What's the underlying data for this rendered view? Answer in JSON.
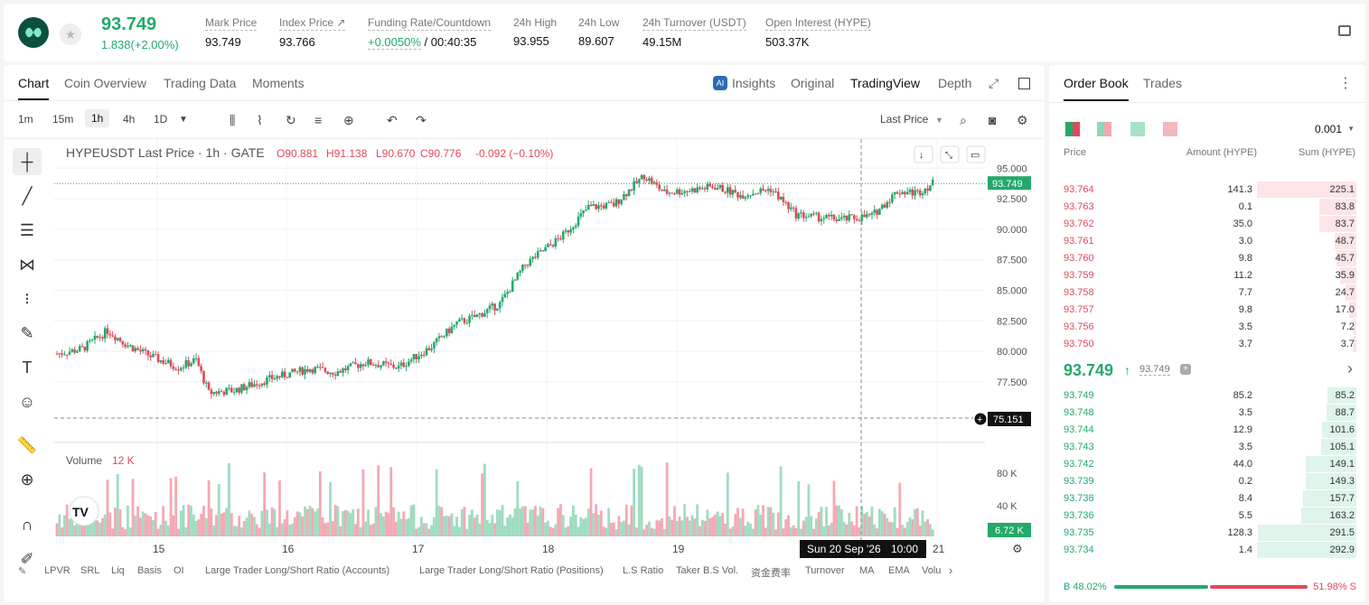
{
  "header": {
    "price": "93.749",
    "change": "1.838(+2.00%)",
    "stats": [
      {
        "label": "Mark Price",
        "value": "93.749"
      },
      {
        "label": "Index Price ↗",
        "value": "93.766"
      },
      {
        "label": "Funding Rate/Countdown",
        "value_green": "+0.0050%",
        "value": "/ 00:40:35"
      },
      {
        "label": "24h High",
        "value": "93.955"
      },
      {
        "label": "24h Low",
        "value": "89.607"
      },
      {
        "label": "24h Turnover (USDT)",
        "value": "49.15M"
      },
      {
        "label": "Open Interest (HYPE)",
        "value": "503.37K"
      }
    ]
  },
  "chart_tabs": [
    "Chart",
    "Coin Overview",
    "Trading Data",
    "Moments"
  ],
  "chart_views": {
    "insights": "Insights",
    "original": "Original",
    "tradingview": "TradingView",
    "depth": "Depth"
  },
  "intervals": [
    "1m",
    "15m",
    "1h",
    "4h",
    "1D"
  ],
  "last_price_label": "Last Price",
  "legend": {
    "symbol": "HYPEUSDT Last Price · 1h · GATE",
    "o": "O90.881",
    "h": "H91.138",
    "l": "L90.670",
    "c": "C90.776",
    "chg": "-0.092 (−0.10%)"
  },
  "volume_label": "Volume",
  "volume_value": "12 K",
  "crosshair": {
    "price": "75.151",
    "date": "Sun 20 Sep '26",
    "time": "10:00"
  },
  "bottom_tabs": [
    "LPVR",
    "SRL",
    "Liq",
    "Basis",
    "OI",
    "Large Trader Long/Short Ratio (Accounts)",
    "Large Trader Long/Short Ratio (Positions)",
    "L.S Ratio",
    "Taker B.S Vol.",
    "资金费率",
    "Turnover",
    "MA",
    "EMA",
    "Volu"
  ],
  "orderbook": {
    "tabs": [
      "Order Book",
      "Trades"
    ],
    "precision": "0.001",
    "cols": [
      "Price",
      "Amount (HYPE)",
      "Sum (HYPE)"
    ],
    "asks": [
      [
        "93.764",
        "141.3",
        "225.1"
      ],
      [
        "93.763",
        "0.1",
        "83.8"
      ],
      [
        "93.762",
        "35.0",
        "83.7"
      ],
      [
        "93.761",
        "3.0",
        "48.7"
      ],
      [
        "93.760",
        "9.8",
        "45.7"
      ],
      [
        "93.759",
        "11.2",
        "35.9"
      ],
      [
        "93.758",
        "7.7",
        "24.7"
      ],
      [
        "93.757",
        "9.8",
        "17.0"
      ],
      [
        "93.756",
        "3.5",
        "7.2"
      ],
      [
        "93.750",
        "3.7",
        "3.7"
      ]
    ],
    "mid": "93.749",
    "mid_mark": "93.749",
    "bids": [
      [
        "93.749",
        "85.2",
        "85.2"
      ],
      [
        "93.748",
        "3.5",
        "88.7"
      ],
      [
        "93.744",
        "12.9",
        "101.6"
      ],
      [
        "93.743",
        "3.5",
        "105.1"
      ],
      [
        "93.742",
        "44.0",
        "149.1"
      ],
      [
        "93.739",
        "0.2",
        "149.3"
      ],
      [
        "93.738",
        "8.4",
        "157.7"
      ],
      [
        "93.736",
        "5.5",
        "163.2"
      ],
      [
        "93.735",
        "128.3",
        "291.5"
      ],
      [
        "93.734",
        "1.4",
        "292.9"
      ]
    ],
    "buy_pct": "B 48.02%",
    "sell_pct": "51.98% S"
  },
  "chart_data": {
    "type": "candlestick",
    "symbol": "HYPEUSDT",
    "interval": "1h",
    "ylim": [
      73.5,
      96.5
    ],
    "yticks": [
      "95.000",
      "92.500",
      "90.000",
      "87.500",
      "85.000",
      "82.500",
      "80.000",
      "77.500"
    ],
    "xticks": [
      "15",
      "16",
      "17",
      "18",
      "19",
      "21"
    ],
    "last": "93.749",
    "vol_ticks": [
      "80 K",
      "40 K"
    ],
    "vol_last": "6.72 K",
    "anchors": [
      [
        0,
        79.8
      ],
      [
        10,
        80.2
      ],
      [
        20,
        81.7
      ],
      [
        28,
        80.5
      ],
      [
        38,
        79.5
      ],
      [
        48,
        78.7
      ],
      [
        55,
        79.3
      ],
      [
        60,
        76.6
      ],
      [
        70,
        76.8
      ],
      [
        85,
        77.8
      ],
      [
        100,
        78.6
      ],
      [
        110,
        78.3
      ],
      [
        122,
        79.1
      ],
      [
        135,
        78.7
      ],
      [
        148,
        80.4
      ],
      [
        158,
        82.3
      ],
      [
        165,
        82.8
      ],
      [
        175,
        83.9
      ],
      [
        185,
        87.1
      ],
      [
        200,
        89.5
      ],
      [
        210,
        91.8
      ],
      [
        220,
        92.0
      ],
      [
        232,
        94.4
      ],
      [
        240,
        93.0
      ],
      [
        250,
        93.2
      ],
      [
        260,
        93.5
      ],
      [
        270,
        92.8
      ],
      [
        282,
        93.3
      ],
      [
        292,
        91.2
      ],
      [
        300,
        91.0
      ],
      [
        310,
        90.8
      ],
      [
        322,
        91.1
      ],
      [
        332,
        93.1
      ],
      [
        340,
        93.0
      ],
      [
        346,
        93.75
      ]
    ]
  }
}
